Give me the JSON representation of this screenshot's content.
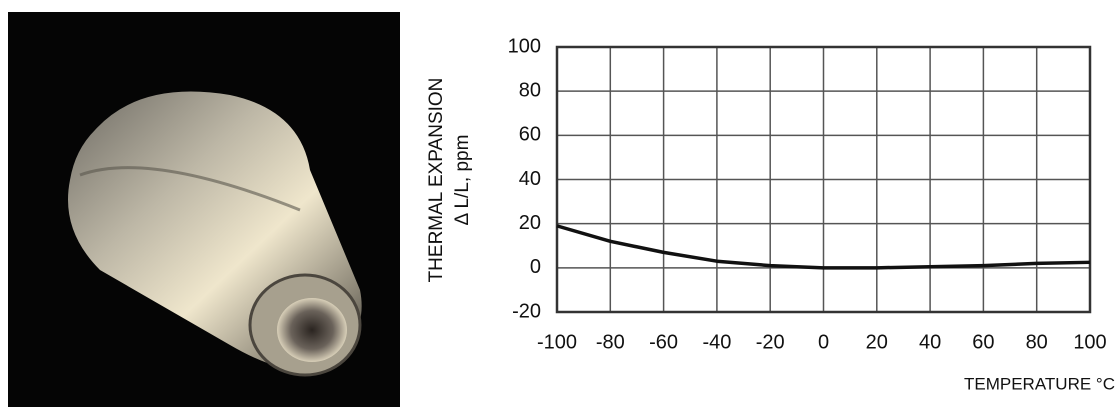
{
  "chart_data": {
    "type": "line",
    "y_label": [
      "THERMAL EXPANSION",
      "Δ L/L, ppm"
    ],
    "x_label": "TEMPERATURE °C",
    "x": [
      -100,
      -80,
      -60,
      -40,
      -20,
      0,
      20,
      40,
      60,
      80,
      100
    ],
    "series": [
      {
        "name": "thermal expansion",
        "color": "#111111",
        "values": [
          19,
          12,
          7,
          3,
          1,
          0,
          0,
          0.5,
          1,
          2,
          2.5
        ]
      }
    ],
    "xlim": [
      -100,
      100
    ],
    "xticks": [
      -100,
      -80,
      -60,
      -40,
      -20,
      0,
      20,
      40,
      60,
      80,
      100
    ],
    "ylim": [
      -20,
      100
    ],
    "yticks": [
      -20,
      0,
      20,
      40,
      60,
      80,
      100
    ],
    "grid": true
  }
}
